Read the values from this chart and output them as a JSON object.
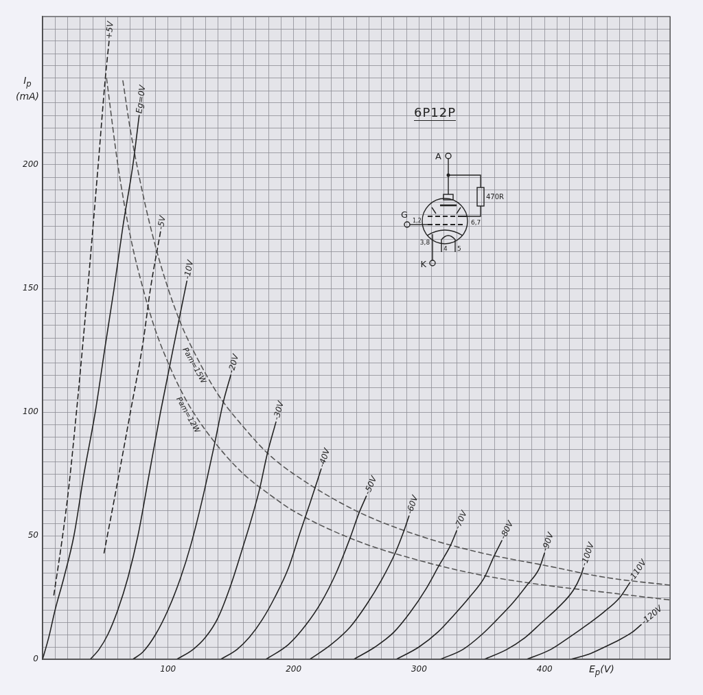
{
  "chart_data": {
    "type": "line",
    "title": "6P12P",
    "xlabel": "E$_{p}$(V)",
    "ylabel": "I$_{p}$ (mA)",
    "xlim": [
      0,
      500
    ],
    "ylim": [
      0,
      260
    ],
    "xticks": [
      {
        "value": 0,
        "label": null
      },
      {
        "value": 10,
        "label": null
      },
      {
        "value": 20,
        "label": null
      },
      {
        "value": 30,
        "label": null
      },
      {
        "value": 40,
        "label": null
      },
      {
        "value": 50,
        "label": null
      },
      {
        "value": 60,
        "label": null
      },
      {
        "value": 70,
        "label": null
      },
      {
        "value": 80,
        "label": null
      },
      {
        "value": 90,
        "label": null
      },
      100,
      {
        "value": 110,
        "label": null
      },
      {
        "value": 120,
        "label": null
      },
      {
        "value": 130,
        "label": null
      },
      {
        "value": 140,
        "label": null
      },
      {
        "value": 150,
        "label": null
      },
      {
        "value": 160,
        "label": null
      },
      {
        "value": 170,
        "label": null
      },
      {
        "value": 180,
        "label": null
      },
      {
        "value": 190,
        "label": null
      },
      200,
      {
        "value": 210,
        "label": null
      },
      {
        "value": 220,
        "label": null
      },
      {
        "value": 230,
        "label": null
      },
      {
        "value": 240,
        "label": null
      },
      {
        "value": 250,
        "label": null
      },
      {
        "value": 260,
        "label": null
      },
      {
        "value": 270,
        "label": null
      },
      {
        "value": 280,
        "label": null
      },
      {
        "value": 290,
        "label": null
      },
      300,
      {
        "value": 310,
        "label": null
      },
      {
        "value": 320,
        "label": null
      },
      {
        "value": 330,
        "label": null
      },
      {
        "value": 340,
        "label": null
      },
      {
        "value": 350,
        "label": null
      },
      {
        "value": 360,
        "label": null
      },
      {
        "value": 370,
        "label": null
      },
      {
        "value": 380,
        "label": null
      },
      {
        "value": 390,
        "label": null
      },
      400,
      {
        "value": 410,
        "label": null
      },
      {
        "value": 420,
        "label": null
      },
      {
        "value": 430,
        "label": null
      },
      {
        "value": 440,
        "label": null
      },
      {
        "value": 450,
        "label": null
      },
      {
        "value": 460,
        "label": null
      },
      {
        "value": 470,
        "label": null
      },
      {
        "value": 480,
        "label": null
      },
      {
        "value": 490,
        "label": null
      },
      {
        "value": 500,
        "label": null
      }
    ],
    "yticks": [
      0,
      {
        "value": 5,
        "label": null
      },
      {
        "value": 10,
        "label": null
      },
      {
        "value": 15,
        "label": null
      },
      {
        "value": 20,
        "label": null
      },
      {
        "value": 25,
        "label": null
      },
      {
        "value": 30,
        "label": null
      },
      {
        "value": 35,
        "label": null
      },
      {
        "value": 40,
        "label": null
      },
      {
        "value": 45,
        "label": null
      },
      50,
      {
        "value": 55,
        "label": null
      },
      {
        "value": 60,
        "label": null
      },
      {
        "value": 65,
        "label": null
      },
      {
        "value": 70,
        "label": null
      },
      {
        "value": 75,
        "label": null
      },
      {
        "value": 80,
        "label": null
      },
      {
        "value": 85,
        "label": null
      },
      {
        "value": 90,
        "label": null
      },
      {
        "value": 95,
        "label": null
      },
      100,
      {
        "value": 105,
        "label": null
      },
      {
        "value": 110,
        "label": null
      },
      {
        "value": 115,
        "label": null
      },
      {
        "value": 120,
        "label": null
      },
      {
        "value": 125,
        "label": null
      },
      {
        "value": 130,
        "label": null
      },
      {
        "value": 135,
        "label": null
      },
      {
        "value": 140,
        "label": null
      },
      {
        "value": 145,
        "label": null
      },
      150,
      {
        "value": 155,
        "label": null
      },
      {
        "value": 160,
        "label": null
      },
      {
        "value": 165,
        "label": null
      },
      {
        "value": 170,
        "label": null
      },
      {
        "value": 175,
        "label": null
      },
      {
        "value": 180,
        "label": null
      },
      {
        "value": 185,
        "label": null
      },
      {
        "value": 190,
        "label": null
      },
      {
        "value": 195,
        "label": null
      },
      200,
      {
        "value": 205,
        "label": null
      },
      {
        "value": 210,
        "label": null
      },
      {
        "value": 215,
        "label": null
      },
      {
        "value": 220,
        "label": null
      },
      {
        "value": 225,
        "label": null
      },
      {
        "value": 230,
        "label": null
      },
      {
        "value": 235,
        "label": null
      },
      {
        "value": 240,
        "label": null
      },
      {
        "value": 245,
        "label": null
      },
      {
        "value": 250,
        "label": null
      },
      {
        "value": 255,
        "label": null
      },
      {
        "value": 260,
        "label": null
      }
    ],
    "grid": true,
    "line_style": "solid",
    "series": [
      {
        "name": "+5V",
        "color": "#222222",
        "line_style": "dashed",
        "x": [
          9,
          16,
          21,
          27,
          32,
          36,
          44,
          50,
          53
        ],
        "values": [
          26,
          50,
          70,
          100,
          127,
          150,
          198,
          235,
          250
        ]
      },
      {
        "name": "Eg=0V",
        "color": "#222222",
        "x": [
          0,
          5,
          10,
          17,
          25,
          33,
          42,
          50,
          57,
          64,
          72,
          77
        ],
        "values": [
          0,
          9,
          20,
          33,
          50,
          75,
          100,
          127,
          150,
          175,
          200,
          220
        ]
      },
      {
        "name": "-5V",
        "color": "#222222",
        "line_style": "dashed",
        "x": [
          49,
          58,
          70,
          80,
          86,
          94
        ],
        "values": [
          43,
          67,
          100,
          128,
          150,
          173
        ]
      },
      {
        "name": "-10V",
        "color": "#222222",
        "x": [
          38,
          45,
          52,
          60,
          68,
          76,
          85,
          94,
          107,
          115
        ],
        "values": [
          0,
          4,
          10,
          20,
          33,
          50,
          75,
          100,
          133,
          153
        ]
      },
      {
        "name": "-20V",
        "color": "#222222",
        "x": [
          72,
          80,
          90,
          100,
          110,
          118,
          127,
          137,
          144,
          150
        ],
        "values": [
          0,
          3,
          10,
          20,
          33,
          46,
          64,
          87,
          104,
          115
        ]
      },
      {
        "name": "-30V",
        "color": "#222222",
        "x": [
          107,
          120,
          130,
          140,
          150,
          160,
          166,
          173,
          179,
          186
        ],
        "values": [
          0,
          4,
          9,
          17,
          30,
          46,
          56,
          69,
          83,
          96
        ]
      },
      {
        "name": "-40V",
        "color": "#222222",
        "x": [
          142,
          155,
          165,
          175,
          185,
          196,
          205,
          213,
          222
        ],
        "values": [
          0,
          4,
          9,
          16,
          25,
          37,
          51,
          63,
          77
        ]
      },
      {
        "name": "-50V",
        "color": "#222222",
        "x": [
          178,
          196,
          210,
          222,
          234,
          245,
          252,
          258
        ],
        "values": [
          0,
          6,
          14,
          23,
          35,
          49,
          59,
          66
        ]
      },
      {
        "name": "-60V",
        "color": "#222222",
        "x": [
          213,
          230,
          245,
          258,
          270,
          281,
          288,
          292
        ],
        "values": [
          0,
          6,
          13,
          22,
          32,
          43,
          52,
          58
        ]
      },
      {
        "name": "-70V",
        "color": "#222222",
        "x": [
          248,
          265,
          280,
          293,
          305,
          316,
          325,
          330
        ],
        "values": [
          0,
          5,
          11,
          19,
          28,
          38,
          46,
          52
        ]
      },
      {
        "name": "-80V",
        "color": "#222222",
        "x": [
          282,
          300,
          315,
          328,
          340,
          352,
          360,
          366
        ],
        "values": [
          0,
          5,
          11,
          18,
          25,
          33,
          42,
          48
        ]
      },
      {
        "name": "-90V",
        "color": "#222222",
        "x": [
          317,
          335,
          350,
          362,
          375,
          386,
          396,
          400
        ],
        "values": [
          0,
          4,
          10,
          16,
          23,
          30,
          37,
          43
        ]
      },
      {
        "name": "-100V",
        "color": "#222222",
        "x": [
          352,
          370,
          385,
          398,
          411,
          423,
          429,
          431
        ],
        "values": [
          0,
          4,
          9,
          15,
          21,
          28,
          34,
          37
        ]
      },
      {
        "name": "-110V",
        "color": "#222222",
        "x": [
          386,
          405,
          420,
          434,
          447,
          460,
          468
        ],
        "values": [
          0,
          4,
          9,
          14,
          19,
          25,
          31
        ]
      },
      {
        "name": "-120V",
        "color": "#222222",
        "x": [
          421,
          435,
          448,
          460,
          470,
          477
        ],
        "values": [
          0,
          2,
          5,
          8,
          11,
          14
        ]
      },
      {
        "color": "#555555",
        "line_style": "dashed",
        "x": [
          64,
          70,
          80,
          90,
          100,
          110,
          120,
          140,
          160,
          180,
          200,
          250,
          300,
          350,
          400,
          450,
          500
        ],
        "values": [
          234,
          214,
          188,
          167,
          150,
          136,
          125,
          107,
          94,
          83,
          75,
          60,
          50,
          43,
          38,
          33,
          30
        ]
      },
      {
        "color": "#555555",
        "line_style": "dashed",
        "x": [
          51,
          60,
          70,
          80,
          90,
          100,
          110,
          120,
          140,
          160,
          180,
          200,
          250,
          300,
          350,
          400,
          450,
          500
        ],
        "values": [
          235,
          200,
          171,
          150,
          133,
          120,
          109,
          100,
          86,
          75,
          67,
          60,
          48,
          40,
          34,
          30,
          27,
          24
        ]
      }
    ],
    "annotations": [
      {
        "text": "Pam=15W",
        "x": 125,
        "y": 120
      },
      {
        "text": "Pam=12W",
        "x": 120,
        "y": 100
      },
      "A",
      "G",
      "1,2",
      "3,8",
      "K",
      "4",
      "5",
      "6,7",
      "470R"
    ]
  }
}
